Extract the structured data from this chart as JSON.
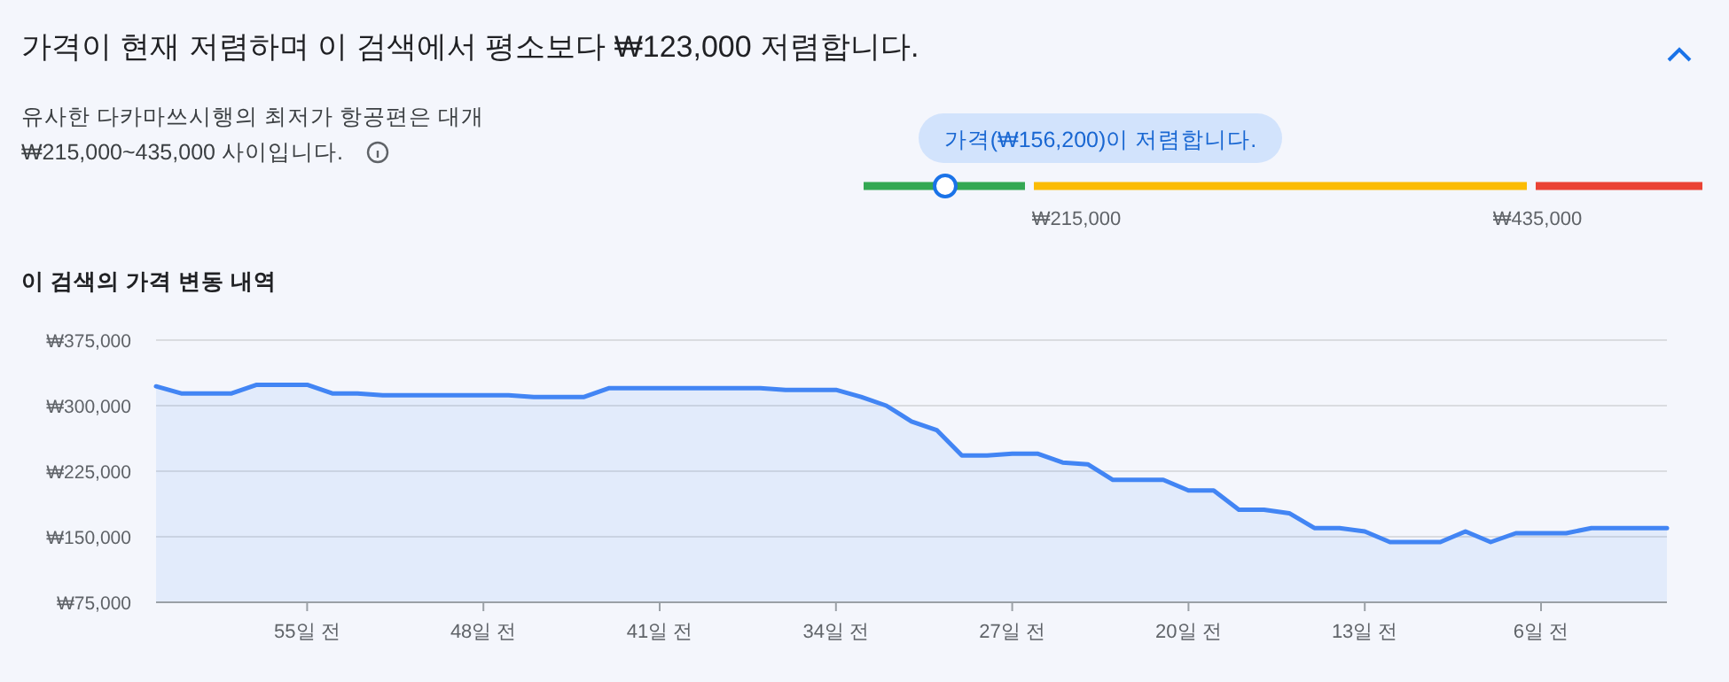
{
  "chart_data": [
    {
      "type": "other",
      "title": "가격이 현재 저렴하며 이 검색에서 평소보다 ₩123,000 저렴합니다.",
      "subtitle": "유사한 다카마쓰시행의 최저가 항공편은 대개 ₩215,000~435,000 사이입니다.",
      "colors": [
        "#34a853",
        "#fbbc04",
        "#ea4335"
      ],
      "annotations": [
        "가격(₩156,200)이 저렴합니다.",
        "₩215,000",
        "₩435,000"
      ]
    },
    {
      "type": "area",
      "title": "이 검색의 가격 변동 내역",
      "color": "#4285f4",
      "x": [
        -61,
        -60,
        -58,
        -57,
        -55,
        -54,
        -53,
        -52,
        -47,
        -46,
        -44,
        -43,
        -37,
        -36,
        -34,
        -33,
        -32,
        -31,
        -30,
        -29,
        -28,
        -27,
        -26,
        -25,
        -24,
        -23,
        -21,
        -20,
        -19,
        -18,
        -17,
        -16,
        -15,
        -14,
        -13,
        -12,
        -10,
        -9,
        -8,
        -7,
        -5,
        -4,
        -1
      ],
      "values": [
        322000,
        314000,
        314000,
        324000,
        324000,
        314000,
        314000,
        312000,
        312000,
        310000,
        310000,
        320000,
        320000,
        318000,
        318000,
        310000,
        300000,
        282000,
        272000,
        243000,
        243000,
        245000,
        245000,
        235000,
        233000,
        215000,
        215000,
        203000,
        203000,
        181000,
        181000,
        177000,
        160000,
        160000,
        156000,
        144000,
        144000,
        156000,
        144000,
        154000,
        154000,
        160000,
        160000
      ],
      "xlim": [
        -61,
        -1
      ],
      "ylim": [
        75000,
        375000
      ],
      "xticks": [
        {
          "value": -55,
          "label": "55일 전"
        },
        {
          "value": -48,
          "label": "48일 전"
        },
        {
          "value": -41,
          "label": "41일 전"
        },
        {
          "value": -34,
          "label": "34일 전"
        },
        {
          "value": -27,
          "label": "27일 전"
        },
        {
          "value": -20,
          "label": "20일 전"
        },
        {
          "value": -13,
          "label": "13일 전"
        },
        {
          "value": -6,
          "label": "6일 전"
        }
      ],
      "yticks": [
        {
          "value": 75000,
          "label": "₩75,000"
        },
        {
          "value": 150000,
          "label": "₩150,000"
        },
        {
          "value": 225000,
          "label": "₩225,000"
        },
        {
          "value": 300000,
          "label": "₩300,000"
        },
        {
          "value": 375000,
          "label": "₩375,000"
        }
      ],
      "grid": "y",
      "marker": "none"
    }
  ]
}
